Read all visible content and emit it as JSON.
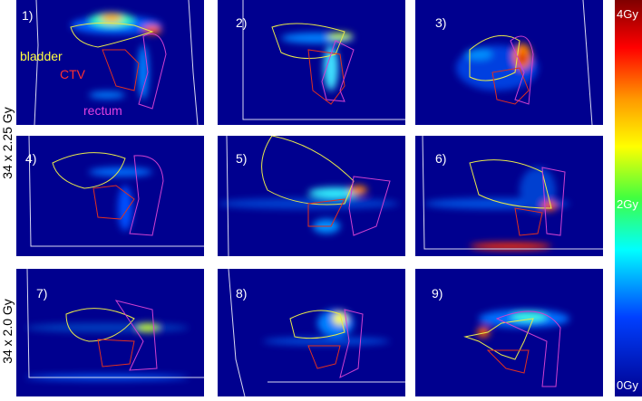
{
  "row_labels": [
    "34 x 2.25 Gy",
    "34 x 2.0 Gy"
  ],
  "panels": [
    "1)",
    "2)",
    "3)",
    "4)",
    "5)",
    "6)",
    "7)",
    "8)",
    "9)"
  ],
  "structure_labels": {
    "bladder": "bladder",
    "ctv": "CTV",
    "rectum": "rectum"
  },
  "colorbar": {
    "top": "4Gy",
    "middle": "2Gy",
    "bottom": "0Gy"
  }
}
